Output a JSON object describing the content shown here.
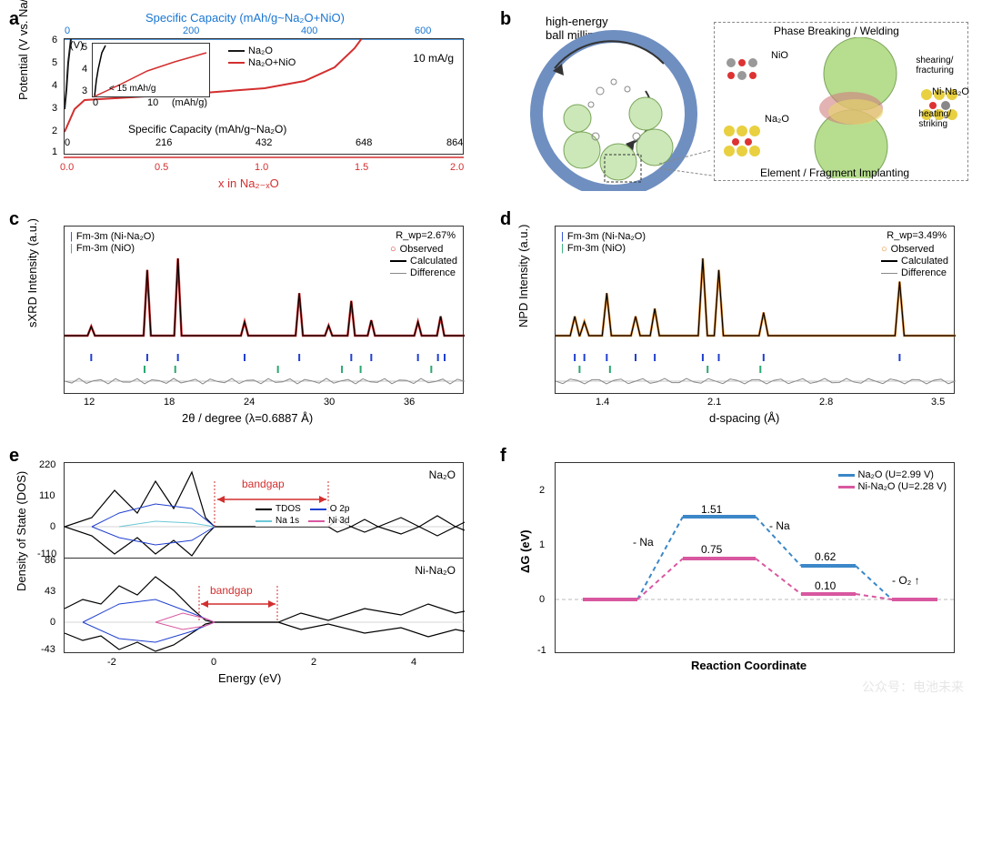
{
  "panel_labels": [
    "a",
    "b",
    "c",
    "d",
    "e",
    "f"
  ],
  "panel_a": {
    "type": "line",
    "ylabel": "Potential (V vs. Na/Na⁺)",
    "xlabel_bottom": "x in Na₂₋ₓO",
    "xlabel_bottom_color": "#d32f2f",
    "xlabel_mid": "Specific Capacity (mAh/g~Na₂O)",
    "xlabel_top": "Specific Capacity (mAh/g~Na₂O+NiO)",
    "xlabel_top_color": "#1976d2",
    "ylim": [
      1,
      6
    ],
    "yticks": [
      1,
      2,
      3,
      4,
      5,
      6
    ],
    "xlim_bottom": [
      0,
      2.0
    ],
    "xticks_bottom": [
      "0.0",
      "0.5",
      "1.0",
      "1.5",
      "2.0"
    ],
    "xticks_mid": [
      "0",
      "216",
      "432",
      "648",
      "864"
    ],
    "xticks_top": [
      "0",
      "200",
      "400",
      "600"
    ],
    "legend_items": [
      {
        "label": "Na₂O",
        "color": "#1a1a1a"
      },
      {
        "label": "Na₂O+NiO",
        "color": "#d32f2f"
      }
    ],
    "rate_label": "10 mA/g",
    "inset": {
      "ylabel": "(V)",
      "yticks": [
        3,
        4,
        5
      ],
      "xticks": [
        0,
        10
      ],
      "xlabel": "(mAh/g)",
      "annotation": "< 15 mAh/g"
    },
    "curve_red_pts": [
      [
        0,
        2.0
      ],
      [
        0.05,
        2.5
      ],
      [
        0.1,
        2.7
      ],
      [
        0.7,
        2.85
      ],
      [
        1.0,
        2.95
      ],
      [
        1.2,
        3.1
      ],
      [
        1.35,
        3.4
      ],
      [
        1.45,
        3.8
      ],
      [
        1.5,
        4.6
      ]
    ],
    "curve_black_pts": [
      [
        0,
        3.0
      ],
      [
        0.01,
        3.4
      ],
      [
        0.02,
        4.0
      ],
      [
        0.03,
        4.5
      ]
    ],
    "background_color": "#ffffff",
    "axis_color": "#333333"
  },
  "panel_b": {
    "type": "infographic",
    "title": "high-energy\nball milling",
    "right_header": "Phase Breaking / Welding",
    "right_footer": "Element / Fragment Implanting",
    "labels": [
      "NiO",
      "Na₂O",
      "shearing/\nfracturing",
      "heating/\nstriking",
      "Ni-Na₂O"
    ],
    "colors": {
      "jar_outer": "#6f8fc0",
      "jar_inner": "#ffffff",
      "ball": "#cce8b8",
      "ball_stroke": "#7aa55a",
      "nio": "#d07f7f",
      "na2o": "#e8d86a",
      "mix_green": "#b7dd8f"
    }
  },
  "panel_c": {
    "type": "line",
    "ylabel": "sXRD Intensity (a.u.)",
    "xlabel": "2θ / degree (λ=0.6887 Å)",
    "xlim": [
      10,
      40
    ],
    "xticks": [
      12,
      18,
      24,
      30,
      36
    ],
    "rwp": "R_wp=2.67%",
    "legend_left": [
      {
        "label": "Fm-3m (Ni-Na₂O)",
        "color": "#2040d0",
        "marker": "tick"
      },
      {
        "label": "Fm-3m (NiO)",
        "color": "#2aa86f",
        "marker": "tick"
      }
    ],
    "legend_right": [
      {
        "label": "Observed",
        "color": "#d32f2f",
        "marker": "circle"
      },
      {
        "label": "Calculated",
        "color": "#000000",
        "marker": "line"
      },
      {
        "label": "Difference",
        "color": "#888888",
        "marker": "line"
      }
    ],
    "peaks_2theta": [
      12,
      16.2,
      18.5,
      23.5,
      27.6,
      29.8,
      31.5,
      33.0,
      36.5,
      38.2
    ],
    "peak_heights": [
      0.12,
      0.85,
      1.0,
      0.18,
      0.55,
      0.13,
      0.45,
      0.2,
      0.18,
      0.25
    ],
    "ticks_blue": [
      12,
      16.2,
      18.5,
      23.5,
      27.6,
      31.5,
      33.0,
      36.5,
      38.0,
      38.5
    ],
    "ticks_green": [
      16.0,
      18.3,
      26.0,
      30.8,
      32.2,
      37.5
    ],
    "colors": {
      "obs": "#d32f2f",
      "calc": "#000000",
      "diff": "#888888",
      "bg": "#ffffff"
    }
  },
  "panel_d": {
    "type": "line",
    "ylabel": "NPD Intensity (a.u.)",
    "xlabel": "d-spacing (Å)",
    "xlim": [
      1.1,
      3.6
    ],
    "xticks": [
      "1.4",
      "2.1",
      "2.8",
      "3.5"
    ],
    "rwp": "R_wp=3.49%",
    "legend_left": [
      {
        "label": "Fm-3m (Ni-Na₂O)",
        "color": "#2040d0",
        "marker": "tick"
      },
      {
        "label": "Fm-3m (NiO)",
        "color": "#2aa86f",
        "marker": "tick"
      }
    ],
    "legend_right": [
      {
        "label": "Observed",
        "color": "#e88b2a",
        "marker": "circle"
      },
      {
        "label": "Calculated",
        "color": "#000000",
        "marker": "line"
      },
      {
        "label": "Difference",
        "color": "#888888",
        "marker": "line"
      }
    ],
    "peaks_d": [
      1.22,
      1.28,
      1.42,
      1.6,
      1.72,
      2.02,
      2.12,
      2.4,
      3.25
    ],
    "peak_heights": [
      0.25,
      0.18,
      0.55,
      0.25,
      0.35,
      1.0,
      0.85,
      0.3,
      0.7
    ],
    "ticks_blue": [
      1.22,
      1.28,
      1.42,
      1.6,
      1.72,
      2.02,
      2.12,
      2.4,
      3.25
    ],
    "ticks_green": [
      1.25,
      1.44,
      2.05,
      2.38
    ],
    "colors": {
      "obs": "#e88b2a",
      "calc": "#000000",
      "diff": "#888888",
      "bg": "#ffffff"
    }
  },
  "panel_e": {
    "type": "line",
    "ylabel": "Density of State (DOS)",
    "xlabel": "Energy (eV)",
    "xlim": [
      -3,
      5
    ],
    "xticks": [
      -2,
      0,
      2,
      4
    ],
    "top": {
      "material": "Na₂O",
      "ylim": [
        -110,
        220
      ],
      "yticks": [
        -110,
        0,
        110,
        220
      ]
    },
    "bottom": {
      "material": "Ni-Na₂O",
      "ylim": [
        -43,
        86
      ],
      "yticks": [
        -43,
        0,
        43,
        86
      ]
    },
    "bandgap_label": "bandgap",
    "bandgap_color": "#d32f2f",
    "legend": [
      {
        "label": "TDOS",
        "color": "#000000"
      },
      {
        "label": "Na 1s",
        "color": "#6cc8d8"
      },
      {
        "label": "O 2p",
        "color": "#2040d0"
      },
      {
        "label": "Ni 3d",
        "color": "#d858a0"
      }
    ],
    "bandgap_top_range": [
      -0.3,
      1.9
    ],
    "bandgap_bottom_range": [
      -0.5,
      1.2
    ]
  },
  "panel_f": {
    "type": "line",
    "ylabel": "ΔG (eV)",
    "xlabel": "Reaction Coordinate",
    "ylim": [
      -1,
      2.5
    ],
    "yticks": [
      -1,
      0,
      1,
      2
    ],
    "legend": [
      {
        "label": "Na₂O (U=2.99 V)",
        "color": "#3b87c8"
      },
      {
        "label": "Ni-Na₂O (U=2.28 V)",
        "color": "#d858a0"
      }
    ],
    "steps": {
      "x": [
        0,
        1,
        2,
        3,
        4
      ],
      "blue_y": [
        0,
        1.51,
        0.62,
        0,
        null
      ],
      "pink_y": [
        0,
        0.75,
        0.1,
        0,
        null
      ]
    },
    "value_labels": [
      "1.51",
      "0.75",
      "0.62",
      "0.10"
    ],
    "step_labels": [
      "- Na",
      "- Na",
      "- O₂ ↑"
    ],
    "zero_line_color": "#bbbbbb"
  },
  "watermark": "公众号：电池未来"
}
